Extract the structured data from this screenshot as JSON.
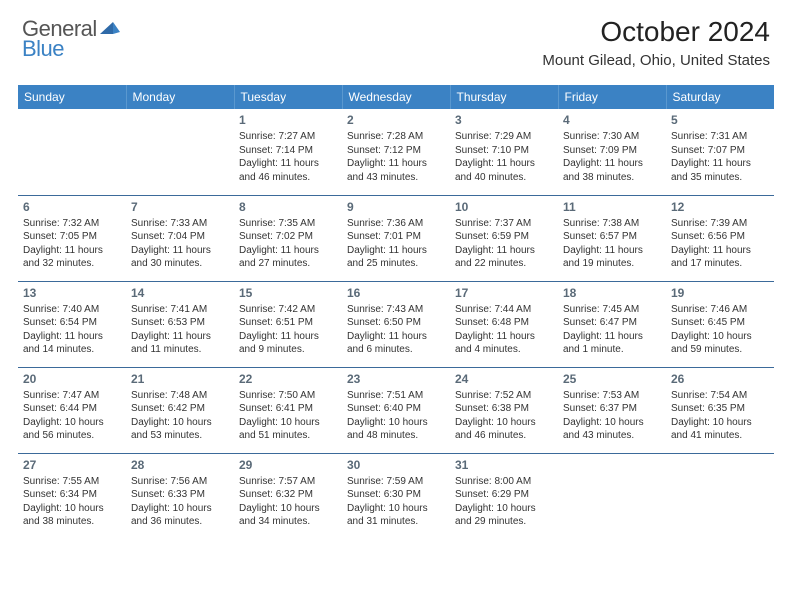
{
  "brand": {
    "part1": "General",
    "part2": "Blue"
  },
  "title": "October 2024",
  "location": "Mount Gilead, Ohio, United States",
  "colors": {
    "header_bg": "#3b82c4",
    "header_text": "#ffffff",
    "row_border": "#3b6a9a",
    "daynum_color": "#5a6a78",
    "body_text": "#333333",
    "logo_gray": "#555555",
    "logo_blue": "#3b82c4",
    "background": "#ffffff"
  },
  "day_headers": [
    "Sunday",
    "Monday",
    "Tuesday",
    "Wednesday",
    "Thursday",
    "Friday",
    "Saturday"
  ],
  "weeks": [
    [
      null,
      null,
      {
        "n": "1",
        "sunrise": "Sunrise: 7:27 AM",
        "sunset": "Sunset: 7:14 PM",
        "daylight": "Daylight: 11 hours and 46 minutes."
      },
      {
        "n": "2",
        "sunrise": "Sunrise: 7:28 AM",
        "sunset": "Sunset: 7:12 PM",
        "daylight": "Daylight: 11 hours and 43 minutes."
      },
      {
        "n": "3",
        "sunrise": "Sunrise: 7:29 AM",
        "sunset": "Sunset: 7:10 PM",
        "daylight": "Daylight: 11 hours and 40 minutes."
      },
      {
        "n": "4",
        "sunrise": "Sunrise: 7:30 AM",
        "sunset": "Sunset: 7:09 PM",
        "daylight": "Daylight: 11 hours and 38 minutes."
      },
      {
        "n": "5",
        "sunrise": "Sunrise: 7:31 AM",
        "sunset": "Sunset: 7:07 PM",
        "daylight": "Daylight: 11 hours and 35 minutes."
      }
    ],
    [
      {
        "n": "6",
        "sunrise": "Sunrise: 7:32 AM",
        "sunset": "Sunset: 7:05 PM",
        "daylight": "Daylight: 11 hours and 32 minutes."
      },
      {
        "n": "7",
        "sunrise": "Sunrise: 7:33 AM",
        "sunset": "Sunset: 7:04 PM",
        "daylight": "Daylight: 11 hours and 30 minutes."
      },
      {
        "n": "8",
        "sunrise": "Sunrise: 7:35 AM",
        "sunset": "Sunset: 7:02 PM",
        "daylight": "Daylight: 11 hours and 27 minutes."
      },
      {
        "n": "9",
        "sunrise": "Sunrise: 7:36 AM",
        "sunset": "Sunset: 7:01 PM",
        "daylight": "Daylight: 11 hours and 25 minutes."
      },
      {
        "n": "10",
        "sunrise": "Sunrise: 7:37 AM",
        "sunset": "Sunset: 6:59 PM",
        "daylight": "Daylight: 11 hours and 22 minutes."
      },
      {
        "n": "11",
        "sunrise": "Sunrise: 7:38 AM",
        "sunset": "Sunset: 6:57 PM",
        "daylight": "Daylight: 11 hours and 19 minutes."
      },
      {
        "n": "12",
        "sunrise": "Sunrise: 7:39 AM",
        "sunset": "Sunset: 6:56 PM",
        "daylight": "Daylight: 11 hours and 17 minutes."
      }
    ],
    [
      {
        "n": "13",
        "sunrise": "Sunrise: 7:40 AM",
        "sunset": "Sunset: 6:54 PM",
        "daylight": "Daylight: 11 hours and 14 minutes."
      },
      {
        "n": "14",
        "sunrise": "Sunrise: 7:41 AM",
        "sunset": "Sunset: 6:53 PM",
        "daylight": "Daylight: 11 hours and 11 minutes."
      },
      {
        "n": "15",
        "sunrise": "Sunrise: 7:42 AM",
        "sunset": "Sunset: 6:51 PM",
        "daylight": "Daylight: 11 hours and 9 minutes."
      },
      {
        "n": "16",
        "sunrise": "Sunrise: 7:43 AM",
        "sunset": "Sunset: 6:50 PM",
        "daylight": "Daylight: 11 hours and 6 minutes."
      },
      {
        "n": "17",
        "sunrise": "Sunrise: 7:44 AM",
        "sunset": "Sunset: 6:48 PM",
        "daylight": "Daylight: 11 hours and 4 minutes."
      },
      {
        "n": "18",
        "sunrise": "Sunrise: 7:45 AM",
        "sunset": "Sunset: 6:47 PM",
        "daylight": "Daylight: 11 hours and 1 minute."
      },
      {
        "n": "19",
        "sunrise": "Sunrise: 7:46 AM",
        "sunset": "Sunset: 6:45 PM",
        "daylight": "Daylight: 10 hours and 59 minutes."
      }
    ],
    [
      {
        "n": "20",
        "sunrise": "Sunrise: 7:47 AM",
        "sunset": "Sunset: 6:44 PM",
        "daylight": "Daylight: 10 hours and 56 minutes."
      },
      {
        "n": "21",
        "sunrise": "Sunrise: 7:48 AM",
        "sunset": "Sunset: 6:42 PM",
        "daylight": "Daylight: 10 hours and 53 minutes."
      },
      {
        "n": "22",
        "sunrise": "Sunrise: 7:50 AM",
        "sunset": "Sunset: 6:41 PM",
        "daylight": "Daylight: 10 hours and 51 minutes."
      },
      {
        "n": "23",
        "sunrise": "Sunrise: 7:51 AM",
        "sunset": "Sunset: 6:40 PM",
        "daylight": "Daylight: 10 hours and 48 minutes."
      },
      {
        "n": "24",
        "sunrise": "Sunrise: 7:52 AM",
        "sunset": "Sunset: 6:38 PM",
        "daylight": "Daylight: 10 hours and 46 minutes."
      },
      {
        "n": "25",
        "sunrise": "Sunrise: 7:53 AM",
        "sunset": "Sunset: 6:37 PM",
        "daylight": "Daylight: 10 hours and 43 minutes."
      },
      {
        "n": "26",
        "sunrise": "Sunrise: 7:54 AM",
        "sunset": "Sunset: 6:35 PM",
        "daylight": "Daylight: 10 hours and 41 minutes."
      }
    ],
    [
      {
        "n": "27",
        "sunrise": "Sunrise: 7:55 AM",
        "sunset": "Sunset: 6:34 PM",
        "daylight": "Daylight: 10 hours and 38 minutes."
      },
      {
        "n": "28",
        "sunrise": "Sunrise: 7:56 AM",
        "sunset": "Sunset: 6:33 PM",
        "daylight": "Daylight: 10 hours and 36 minutes."
      },
      {
        "n": "29",
        "sunrise": "Sunrise: 7:57 AM",
        "sunset": "Sunset: 6:32 PM",
        "daylight": "Daylight: 10 hours and 34 minutes."
      },
      {
        "n": "30",
        "sunrise": "Sunrise: 7:59 AM",
        "sunset": "Sunset: 6:30 PM",
        "daylight": "Daylight: 10 hours and 31 minutes."
      },
      {
        "n": "31",
        "sunrise": "Sunrise: 8:00 AM",
        "sunset": "Sunset: 6:29 PM",
        "daylight": "Daylight: 10 hours and 29 minutes."
      },
      null,
      null
    ]
  ]
}
